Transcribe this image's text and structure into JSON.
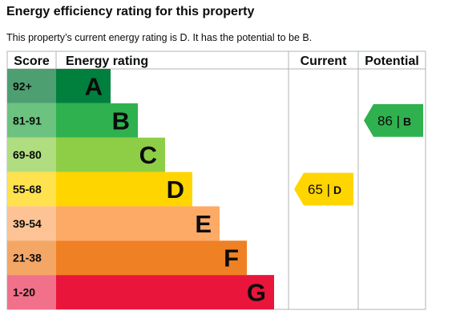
{
  "page": {
    "heading": "Energy efficiency rating for this property",
    "summary": "This property’s current energy rating is D. It has the potential to be B."
  },
  "chart_data": {
    "type": "bar",
    "headers": {
      "score": "Score",
      "rating": "Energy rating",
      "current": "Current",
      "potential": "Potential"
    },
    "bands": [
      {
        "band": "A",
        "score": "92+",
        "bar_color": "#007f3d",
        "score_color": "#4d9f72",
        "text_color": "#0b0c0c"
      },
      {
        "band": "B",
        "score": "81-91",
        "bar_color": "#2fb14f",
        "score_color": "#6cc27f",
        "text_color": "#0b0c0c"
      },
      {
        "band": "C",
        "score": "69-80",
        "bar_color": "#8dce46",
        "score_color": "#b0dd80",
        "text_color": "#0b0c0c"
      },
      {
        "band": "D",
        "score": "55-68",
        "bar_color": "#ffd500",
        "score_color": "#ffe24d",
        "text_color": "#0b0c0c"
      },
      {
        "band": "E",
        "score": "39-54",
        "bar_color": "#fcaa65",
        "score_color": "#fdc394",
        "text_color": "#0b0c0c"
      },
      {
        "band": "F",
        "score": "21-38",
        "bar_color": "#ef8023",
        "score_color": "#f4a665",
        "text_color": "#0b0c0c"
      },
      {
        "band": "G",
        "score": "1-20",
        "bar_color": "#e9153b",
        "score_color": "#f07189",
        "text_color": "#0b0c0c"
      }
    ],
    "current": {
      "value": 65,
      "band": "D",
      "label": "65 | D",
      "color": "#ffd500"
    },
    "potential": {
      "value": 86,
      "band": "B",
      "label": "86 | B",
      "color": "#2fb14f"
    }
  }
}
